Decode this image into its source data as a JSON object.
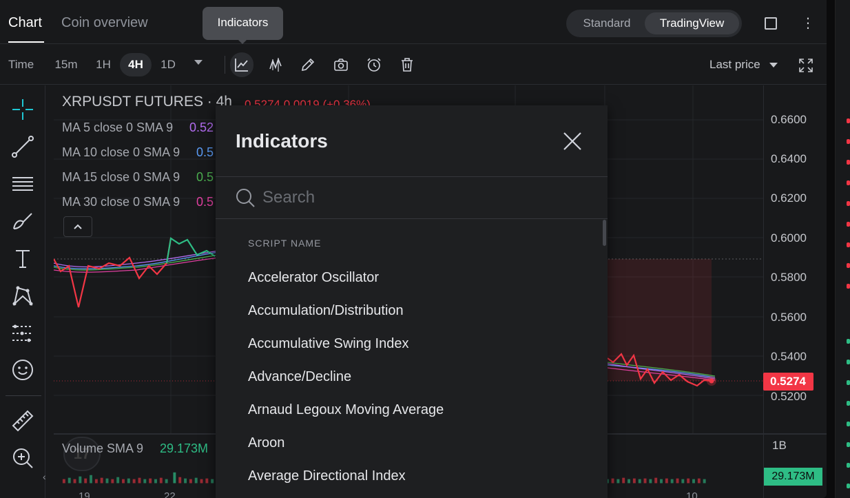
{
  "tabs": {
    "chart": "Chart",
    "coin_overview": "Coin overview"
  },
  "view_switch": {
    "standard": "Standard",
    "tradingview": "TradingView"
  },
  "tooltip": "Indicators",
  "toolbar": {
    "time_label": "Time",
    "intervals": [
      "15m",
      "1H",
      "4H",
      "1D"
    ],
    "active_interval": "4H",
    "last_price": "Last price"
  },
  "legend": {
    "symbol": "XRPUSDT FUTURES · 4h",
    "quote": "0.5274  0.0019 (+0.36%)",
    "ma_rows": [
      {
        "label": "MA 5 close 0 SMA 9",
        "value": "0.52",
        "color": "#b26cf0"
      },
      {
        "label": "MA 10 close 0 SMA 9",
        "value": "0.5",
        "color": "#5b9cf6"
      },
      {
        "label": "MA 15 close 0 SMA 9",
        "value": "0.5",
        "color": "#4caf50"
      },
      {
        "label": "MA 30 close 0 SMA 9",
        "value": "0.5",
        "color": "#e040a0"
      }
    ],
    "volume_label": "Volume SMA 9",
    "volume_value": "29.173M"
  },
  "price_scale": {
    "ticks": [
      "0.6600",
      "0.6400",
      "0.6200",
      "0.6000",
      "0.5800",
      "0.5600",
      "0.5400",
      "0.5200"
    ],
    "last_price": "0.5274",
    "volume_top": "1B",
    "volume_last": "29.173M"
  },
  "date_axis": [
    "19",
    "22",
    "10"
  ],
  "modal": {
    "title": "Indicators",
    "search_placeholder": "Search",
    "section_header": "SCRIPT NAME",
    "items": [
      "Accelerator Oscillator",
      "Accumulation/Distribution",
      "Accumulative Swing Index",
      "Advance/Decline",
      "Arnaud Legoux Moving Average",
      "Aroon",
      "Average Directional Index"
    ]
  },
  "colors": {
    "up": "#2ebd85",
    "down": "#f23645",
    "accent_cyan": "#1fc7d4",
    "background": "#18191b"
  }
}
